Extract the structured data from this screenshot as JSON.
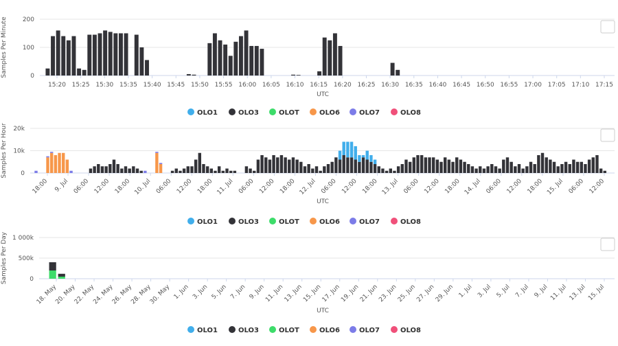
{
  "colors": {
    "OLO1": "#41aeeb",
    "OLO3": "#333338",
    "OLOT": "#3ddc6a",
    "OLO6": "#f7974a",
    "OLO7": "#7c7ce8",
    "OLO8": "#f0507a"
  },
  "chart_data": [
    {
      "type": "bar",
      "stacked": true,
      "xlabel": "UTC",
      "ylabel": "Samples Per Minute",
      "ylim": [
        0,
        200
      ],
      "yticks": [
        "0",
        "100",
        "200"
      ],
      "grid": true,
      "legend_position": "bottom",
      "legend": [
        "OLO1",
        "OLO3",
        "OLOT",
        "OLO6",
        "OLO7",
        "OLO8"
      ],
      "x_start": "15:18",
      "x_interval": "1 minute",
      "xticks": [
        "15:20",
        "15:25",
        "15:30",
        "15:35",
        "15:40",
        "15:45",
        "15:50",
        "15:55",
        "16:00",
        "16:05",
        "16:10",
        "16:15",
        "16:20",
        "16:25",
        "16:30",
        "16:35",
        "16:40",
        "16:45",
        "16:50",
        "16:55",
        "17:00",
        "17:05",
        "17:10",
        "17:15"
      ],
      "series": [
        {
          "name": "OLO3",
          "values": [
            0,
            25,
            140,
            160,
            140,
            125,
            140,
            25,
            20,
            145,
            145,
            150,
            160,
            155,
            150,
            150,
            150,
            0,
            145,
            100,
            55,
            0,
            0,
            0,
            0,
            0,
            0,
            0,
            5,
            3,
            0,
            0,
            115,
            150,
            125,
            110,
            70,
            120,
            140,
            160,
            105,
            105,
            95,
            0,
            0,
            0,
            0,
            0,
            3,
            2,
            0,
            0,
            0,
            15,
            135,
            125,
            150,
            105,
            0,
            0,
            0,
            0,
            0,
            0,
            0,
            0,
            0,
            45,
            20,
            0,
            0,
            0,
            0,
            0,
            0,
            0,
            0,
            0,
            0,
            0,
            0,
            0,
            0,
            0,
            0,
            0,
            0,
            0,
            0,
            0,
            0,
            0,
            0,
            0,
            0,
            0,
            0,
            0,
            0,
            0,
            0,
            0,
            0,
            0,
            0,
            0,
            0,
            0,
            0
          ]
        }
      ]
    },
    {
      "type": "bar",
      "stacked": true,
      "xlabel": "UTC",
      "ylabel": "Samples Per Hour",
      "ylim": [
        0,
        20000
      ],
      "yticks": [
        "0",
        "10k",
        "20k"
      ],
      "grid": true,
      "legend_position": "bottom",
      "legend": [
        "OLO1",
        "OLO3",
        "OLOT",
        "OLO6",
        "OLO7",
        "OLO8"
      ],
      "x_start": "2024-07-08T18:00",
      "x_interval": "1 hour",
      "xticks": [
        "18:00",
        "9. Jul",
        "06:00",
        "12:00",
        "18:00",
        "10. Jul",
        "06:00",
        "12:00",
        "18:00",
        "11. Jul",
        "06:00",
        "12:00",
        "18:00",
        "12. Jul",
        "06:00",
        "12:00",
        "18:00",
        "13. Jul",
        "06:00",
        "12:00",
        "18:00",
        "14. Jul",
        "06:00",
        "12:00",
        "18:00",
        "15. Jul",
        "06:00",
        "12:00"
      ],
      "series": [
        {
          "name": "OLO3",
          "values": [
            0,
            0,
            0,
            0,
            0,
            0,
            0,
            0,
            0,
            0,
            0,
            0,
            0,
            0,
            0,
            2000,
            3000,
            4000,
            3000,
            3000,
            4000,
            6000,
            4000,
            2000,
            3000,
            2000,
            3000,
            2000,
            1000,
            0,
            0,
            0,
            0,
            0,
            0,
            0,
            1000,
            2000,
            1000,
            2000,
            3000,
            3000,
            6000,
            9000,
            4000,
            3000,
            2000,
            1000,
            3000,
            1000,
            2000,
            1000,
            1000,
            0,
            0,
            3000,
            2000,
            1000,
            6000,
            8000,
            7000,
            6000,
            8000,
            7000,
            8000,
            7000,
            6000,
            7000,
            6000,
            5000,
            3000,
            4000,
            2000,
            3000,
            1000,
            3000,
            4000,
            5000,
            7000,
            6000,
            8000,
            7000,
            7000,
            6000,
            5000,
            7000,
            6000,
            5000,
            4000,
            3000,
            2000,
            1000,
            2000,
            1000,
            3000,
            4000,
            6000,
            5000,
            7000,
            8000,
            8000,
            7000,
            7000,
            7000,
            6000,
            5000,
            7000,
            6000,
            5000,
            7000,
            6000,
            5000,
            4000,
            3000,
            2000,
            3000,
            2000,
            3000,
            4000,
            3000,
            2000,
            6000,
            7000,
            5000,
            3000,
            4000,
            2000,
            3000,
            5000,
            4000,
            8000,
            9000,
            7000,
            6000,
            5000,
            3000,
            4000,
            5000,
            4000,
            6000,
            5000,
            5000,
            4000,
            6000,
            7000,
            8000,
            2000,
            1000
          ]
        },
        {
          "name": "OLO1",
          "values": [
            0,
            0,
            0,
            0,
            0,
            0,
            0,
            0,
            0,
            0,
            0,
            0,
            0,
            0,
            0,
            0,
            0,
            0,
            0,
            0,
            0,
            0,
            0,
            0,
            0,
            0,
            0,
            0,
            0,
            0,
            0,
            0,
            0,
            0,
            0,
            0,
            0,
            0,
            0,
            0,
            0,
            0,
            0,
            0,
            0,
            0,
            0,
            0,
            0,
            0,
            0,
            0,
            0,
            0,
            0,
            0,
            0,
            0,
            0,
            0,
            0,
            0,
            0,
            0,
            0,
            0,
            0,
            0,
            0,
            0,
            0,
            0,
            0,
            0,
            0,
            0,
            0,
            0,
            0,
            4000,
            6000,
            7000,
            7000,
            6000,
            3000,
            1000,
            4000,
            3000,
            2000,
            0,
            0,
            0,
            0,
            0,
            0,
            0,
            0,
            0,
            0,
            0,
            0,
            0,
            0,
            0,
            0,
            0,
            0,
            0,
            0,
            0,
            0,
            0,
            0,
            0,
            0,
            0,
            0,
            0,
            0,
            0,
            0,
            0,
            0,
            0,
            0,
            0,
            0,
            0,
            0,
            0,
            0,
            0,
            0,
            0,
            0,
            0,
            0,
            0,
            0,
            0,
            0,
            0,
            0,
            0,
            0,
            0,
            0,
            0,
            0
          ]
        },
        {
          "name": "OLO6",
          "values": [
            0,
            0,
            0,
            0,
            7000,
            9000,
            8000,
            9000,
            9000,
            6000,
            0,
            0,
            0,
            0,
            0,
            0,
            0,
            0,
            0,
            0,
            0,
            0,
            0,
            0,
            0,
            0,
            0,
            0,
            0,
            0,
            0,
            0,
            9000,
            4000,
            0,
            0,
            0,
            0,
            0,
            0,
            0,
            0,
            0,
            0,
            0,
            0,
            0,
            0,
            0,
            0,
            0,
            0,
            0,
            0,
            0,
            0,
            0,
            0,
            0,
            0,
            0,
            0,
            0,
            0,
            0,
            0,
            0,
            0,
            0,
            0,
            0,
            0,
            0,
            0,
            0,
            0,
            0,
            0,
            0,
            0,
            0,
            0,
            0,
            0,
            0,
            0,
            0,
            0,
            0,
            0,
            0,
            0,
            0,
            0,
            0,
            0,
            0,
            0,
            0,
            0,
            0,
            0,
            0,
            0,
            0,
            0,
            0,
            0,
            0,
            0,
            0,
            0,
            0,
            0,
            0,
            0,
            0,
            0,
            0,
            0,
            0,
            0,
            0,
            0,
            0,
            0,
            0,
            0,
            0,
            0,
            0,
            0,
            0,
            0,
            0,
            0,
            0,
            0,
            0,
            0,
            0,
            0,
            0,
            0,
            0,
            0,
            0,
            0,
            0,
            0
          ]
        },
        {
          "name": "OLO7",
          "values": [
            0,
            1000,
            0,
            0,
            500,
            500,
            0,
            0,
            0,
            0,
            1000,
            0,
            0,
            0,
            0,
            0,
            0,
            0,
            0,
            0,
            0,
            0,
            0,
            0,
            0,
            0,
            0,
            0,
            0,
            1000,
            0,
            0,
            500,
            500,
            0,
            0,
            0,
            0,
            0,
            0,
            0,
            0,
            0,
            0,
            0,
            0,
            0,
            0,
            0,
            0,
            0,
            0,
            0,
            0,
            0,
            0,
            0,
            0,
            0,
            0,
            0,
            0,
            0,
            0,
            0,
            0,
            0,
            0,
            0,
            0,
            0,
            0,
            0,
            0,
            0,
            0,
            0,
            0,
            0,
            0,
            0,
            0,
            0,
            0,
            0,
            0,
            0,
            0,
            0,
            0,
            0,
            0,
            0,
            0,
            0,
            0,
            0,
            0,
            0,
            0,
            0,
            0,
            0,
            0,
            0,
            0,
            0,
            0,
            0,
            0,
            0,
            0,
            0,
            0,
            0,
            0,
            0,
            0,
            0,
            0,
            0,
            0,
            0,
            0,
            0,
            0,
            0,
            0,
            0,
            0,
            0,
            0,
            0,
            0,
            0,
            0,
            0,
            0,
            0,
            0,
            0,
            0,
            0,
            0,
            0,
            0,
            0,
            0,
            0,
            0
          ]
        }
      ]
    },
    {
      "type": "bar",
      "stacked": true,
      "xlabel": "UTC",
      "ylabel": "Samples Per Day",
      "ylim": [
        0,
        1000000
      ],
      "yticks": [
        "0",
        "500k",
        "1 000k"
      ],
      "grid": true,
      "legend_position": "bottom",
      "legend": [
        "OLO1",
        "OLO3",
        "OLOT",
        "OLO6",
        "OLO7",
        "OLO8"
      ],
      "x_start": "2024-05-17",
      "x_interval": "1 day",
      "xticks": [
        "18. May",
        "20. May",
        "22. May",
        "24. May",
        "26. May",
        "28. May",
        "30. May",
        "1. Jun",
        "3. Jun",
        "5. Jun",
        "7. Jun",
        "9. Jun",
        "11. Jun",
        "13. Jun",
        "15. Jun",
        "17. Jun",
        "19. Jun",
        "21. Jun",
        "23. Jun",
        "25. Jun",
        "27. Jun",
        "29. Jun",
        "1. Jul",
        "3. Jul",
        "5. Jul",
        "7. Jul",
        "9. Jul",
        "11. Jul",
        "13. Jul",
        "15. Jul"
      ],
      "series": [
        {
          "name": "OLOT",
          "values": [
            0,
            200000,
            50000,
            0,
            0,
            0,
            0,
            0,
            0,
            0,
            0,
            0,
            0,
            0,
            0,
            0,
            0,
            0,
            0,
            0,
            0,
            0,
            0,
            0,
            0,
            0,
            0,
            0,
            0,
            0,
            0,
            0,
            0,
            0,
            0,
            0,
            0,
            0,
            0,
            0,
            0,
            0,
            0,
            0,
            0,
            0,
            0,
            0,
            0,
            0,
            0,
            0,
            0,
            0,
            0,
            0,
            0,
            0,
            0,
            0,
            0,
            0,
            0,
            0
          ]
        },
        {
          "name": "OLO3",
          "values": [
            0,
            200000,
            70000,
            0,
            0,
            0,
            0,
            0,
            0,
            0,
            0,
            0,
            0,
            0,
            0,
            0,
            0,
            0,
            0,
            0,
            0,
            0,
            0,
            0,
            0,
            0,
            0,
            0,
            0,
            0,
            0,
            0,
            0,
            0,
            0,
            0,
            0,
            0,
            0,
            0,
            0,
            0,
            0,
            0,
            0,
            0,
            0,
            0,
            0,
            0,
            0,
            0,
            0,
            0,
            0,
            0,
            0,
            0,
            0,
            0,
            0,
            0,
            0,
            0
          ]
        }
      ]
    }
  ]
}
